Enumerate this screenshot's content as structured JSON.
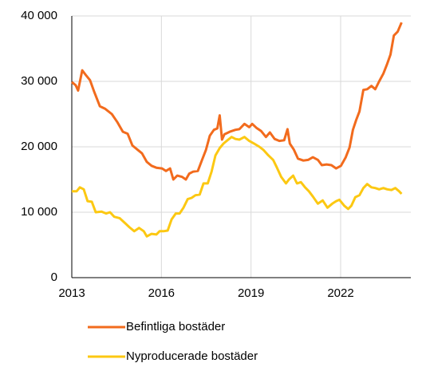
{
  "chart_data": {
    "type": "line",
    "xlim": [
      2013,
      2024.35
    ],
    "xticks": [
      2013,
      2016,
      2019,
      2022
    ],
    "ylim": [
      0,
      40000
    ],
    "yticks": [
      0,
      {
        "value": 10000,
        "label": "10 000"
      },
      {
        "value": 20000,
        "label": "20 000"
      },
      {
        "value": 30000,
        "label": "30 000"
      },
      {
        "value": 40000,
        "label": "40 000"
      }
    ],
    "grid": true,
    "legend": "bottom",
    "series": [
      {
        "name": "Befintliga bostäder",
        "color": "#f26b1d",
        "x": [
          2013.0,
          2013.13,
          2013.21,
          2013.35,
          2013.48,
          2013.61,
          2013.75,
          2013.94,
          2014.12,
          2014.34,
          2014.52,
          2014.71,
          2014.87,
          2015.03,
          2015.19,
          2015.35,
          2015.51,
          2015.67,
          2015.83,
          2016.02,
          2016.15,
          2016.29,
          2016.4,
          2016.53,
          2016.69,
          2016.82,
          2016.93,
          2017.06,
          2017.22,
          2017.36,
          2017.49,
          2017.62,
          2017.76,
          2017.87,
          2017.95,
          2018.03,
          2018.11,
          2018.29,
          2018.48,
          2018.61,
          2018.78,
          2018.94,
          2019.04,
          2019.18,
          2019.34,
          2019.5,
          2019.63,
          2019.79,
          2019.95,
          2020.11,
          2020.22,
          2020.3,
          2020.43,
          2020.57,
          2020.75,
          2020.91,
          2021.07,
          2021.24,
          2021.37,
          2021.53,
          2021.69,
          2021.85,
          2022.01,
          2022.17,
          2022.3,
          2022.41,
          2022.52,
          2022.63,
          2022.76,
          2022.89,
          2023.03,
          2023.16,
          2023.29,
          2023.43,
          2023.56,
          2023.67,
          2023.78,
          2023.91,
          2024.04
        ],
        "values": [
          29900,
          29400,
          28600,
          31700,
          30900,
          30200,
          28400,
          26200,
          25800,
          25000,
          23800,
          22300,
          22000,
          20200,
          19600,
          19000,
          17700,
          17100,
          16800,
          16700,
          16300,
          16700,
          15000,
          15600,
          15400,
          15000,
          15900,
          16200,
          16300,
          18000,
          19500,
          21700,
          22600,
          22800,
          24800,
          21100,
          21900,
          22300,
          22600,
          22700,
          23500,
          23000,
          23500,
          22900,
          22400,
          21500,
          22200,
          21200,
          20900,
          21000,
          22700,
          20500,
          19600,
          18200,
          17900,
          18000,
          18400,
          18000,
          17200,
          17300,
          17200,
          16700,
          17100,
          18400,
          19900,
          22600,
          24100,
          25400,
          28700,
          28800,
          29300,
          28800,
          30000,
          31200,
          32700,
          34100,
          37000,
          37600,
          39000
        ]
      },
      {
        "name": "Nyproducerade bostäder",
        "color": "#fcc812",
        "x": [
          2013.0,
          2013.16,
          2013.27,
          2013.4,
          2013.53,
          2013.67,
          2013.8,
          2013.99,
          2014.15,
          2014.28,
          2014.42,
          2014.6,
          2014.79,
          2014.93,
          2015.09,
          2015.25,
          2015.41,
          2015.51,
          2015.67,
          2015.83,
          2015.94,
          2016.07,
          2016.21,
          2016.34,
          2016.48,
          2016.61,
          2016.74,
          2016.88,
          2017.01,
          2017.14,
          2017.28,
          2017.41,
          2017.55,
          2017.68,
          2017.81,
          2017.95,
          2018.08,
          2018.21,
          2018.35,
          2018.48,
          2018.61,
          2018.78,
          2018.94,
          2019.1,
          2019.28,
          2019.42,
          2019.58,
          2019.74,
          2019.87,
          2020.01,
          2020.17,
          2020.27,
          2020.41,
          2020.54,
          2020.67,
          2020.81,
          2020.94,
          2021.07,
          2021.24,
          2021.4,
          2021.56,
          2021.72,
          2021.85,
          2021.96,
          2022.12,
          2022.25,
          2022.36,
          2022.49,
          2022.63,
          2022.76,
          2022.89,
          2023.03,
          2023.16,
          2023.29,
          2023.43,
          2023.56,
          2023.7,
          2023.83,
          2023.96,
          2024.04
        ],
        "values": [
          13200,
          13200,
          13800,
          13500,
          11700,
          11600,
          10000,
          10100,
          9800,
          10000,
          9300,
          9100,
          8300,
          7700,
          7100,
          7600,
          7100,
          6300,
          6700,
          6600,
          7100,
          7100,
          7200,
          8900,
          9800,
          9800,
          10700,
          12000,
          12200,
          12600,
          12700,
          14400,
          14400,
          16200,
          18700,
          19800,
          20500,
          21000,
          21500,
          21200,
          21100,
          21500,
          20900,
          20500,
          20000,
          19500,
          18700,
          18000,
          16800,
          15400,
          14400,
          15000,
          15600,
          14400,
          14600,
          13800,
          13200,
          12400,
          11300,
          11800,
          10700,
          11300,
          11700,
          11900,
          11000,
          10500,
          11000,
          12300,
          12600,
          13700,
          14300,
          13800,
          13700,
          13500,
          13700,
          13500,
          13400,
          13700,
          13200,
          12800
        ]
      }
    ]
  }
}
